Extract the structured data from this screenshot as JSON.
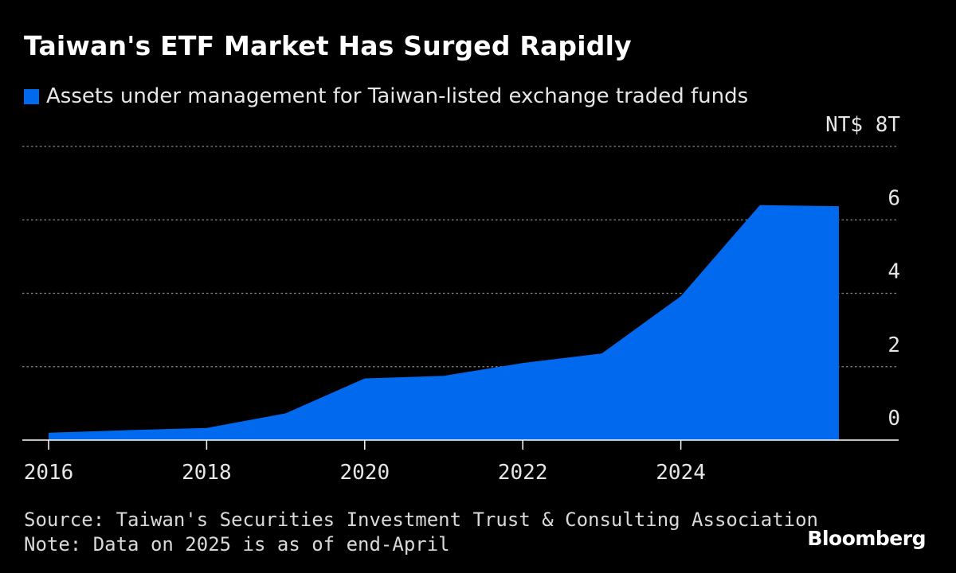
{
  "title": "Taiwan's ETF Market Has Surged Rapidly",
  "legend": {
    "label": "Assets under management for Taiwan-listed exchange traded funds",
    "color": "#0069ed"
  },
  "colors": {
    "background": "#000000",
    "area": "#0069ed",
    "grid": "#8a8a8a",
    "text": "#e6e6e6"
  },
  "chart_data": {
    "type": "area",
    "title": "Taiwan's ETF Market Has Surged Rapidly",
    "x": [
      2016,
      2017,
      2018,
      2019,
      2020,
      2021,
      2022,
      2023,
      2024,
      2025,
      2026
    ],
    "series": [
      {
        "name": "Assets under management for Taiwan-listed exchange traded funds",
        "values": [
          0.2,
          0.27,
          0.33,
          0.73,
          1.68,
          1.75,
          2.1,
          2.36,
          3.92,
          6.4,
          6.37
        ]
      }
    ],
    "xlim": [
      2015.7,
      2026
    ],
    "ylim": [
      0,
      8
    ],
    "x_ticks": [
      "2016",
      "2018",
      "2020",
      "2022",
      "2024"
    ],
    "y_ticks": [
      "0",
      "2",
      "4",
      "6",
      "NT$ 8T"
    ],
    "y_axis_side": "right",
    "grid": "horizontal dotted",
    "legend_position": "top-left"
  },
  "footer": {
    "source": "Source: Taiwan's Securities Investment Trust & Consulting Association",
    "note": "Note: Data on 2025 is as of end-April"
  },
  "brand": "Bloomberg"
}
